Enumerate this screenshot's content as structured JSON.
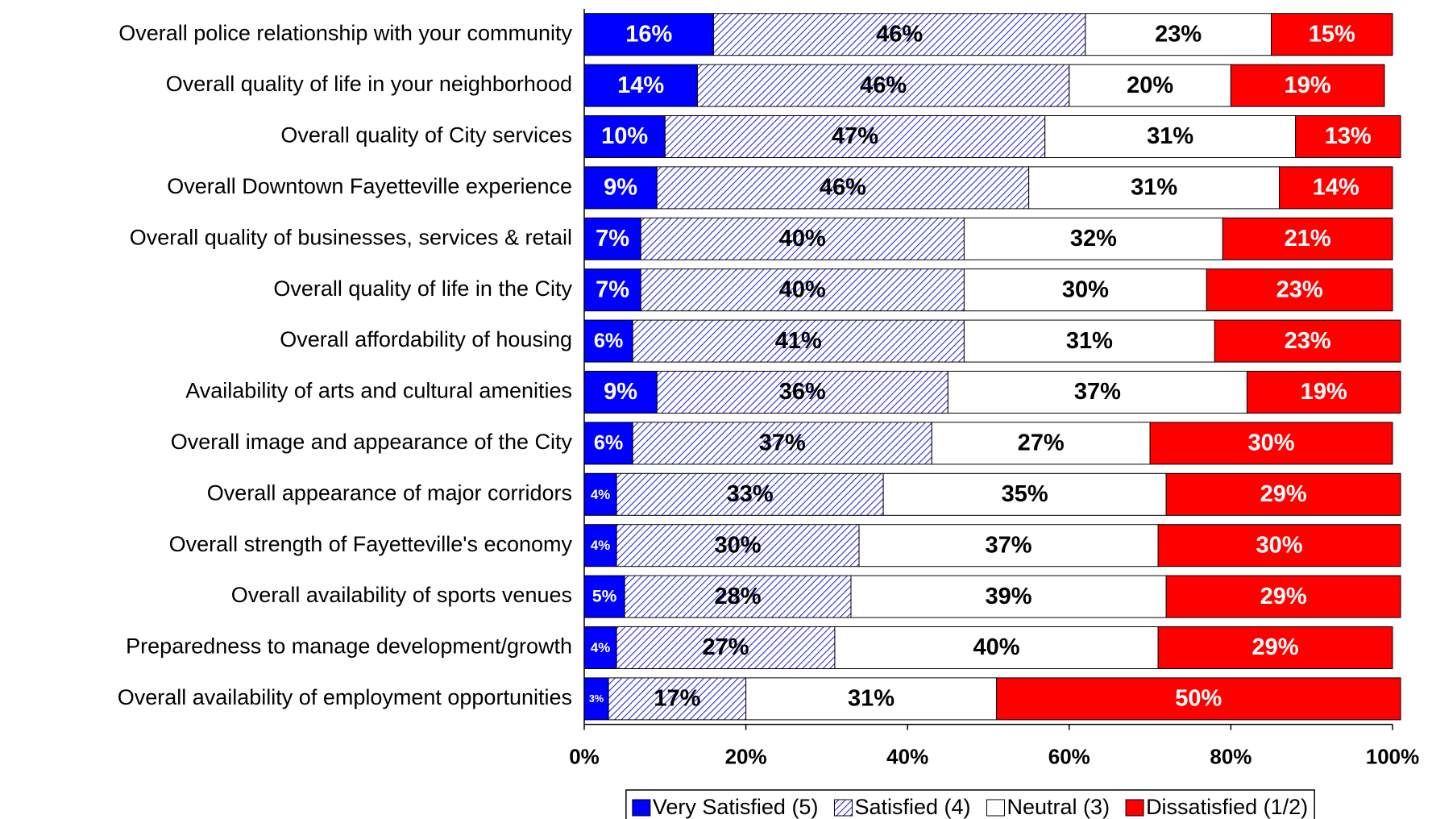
{
  "chart_data": {
    "type": "stacked_barh",
    "categories": [
      "Overall police relationship with your community",
      "Overall quality of life in your neighborhood",
      "Overall quality of City services",
      "Overall Downtown Fayetteville experience",
      "Overall quality of businesses, services & retail",
      "Overall quality of life in the City",
      "Overall affordability of housing",
      "Availability of arts and cultural amenities",
      "Overall image and appearance of the City",
      "Overall appearance of major corridors",
      "Overall strength of Fayetteville's economy",
      "Overall availability of sports venues",
      "Preparedness to manage development/growth",
      "Overall availability of employment opportunities"
    ],
    "series": [
      {
        "name": "Very Satisfied (5)",
        "color": "#0000ff",
        "label_color": "#ffffff",
        "values": [
          16,
          14,
          10,
          9,
          7,
          7,
          6,
          9,
          6,
          4,
          4,
          5,
          4,
          3
        ],
        "value_labels": [
          "16%",
          "14%",
          "10%",
          "9%",
          "7%",
          "7%",
          "6%",
          "9%",
          "6%",
          "4%",
          "4%",
          "5%",
          "4%",
          "3%"
        ]
      },
      {
        "name": "Satisfied (4)",
        "color": "#2a2ad8",
        "pattern": "hatch",
        "label_color": "#000000",
        "values": [
          46,
          46,
          47,
          46,
          40,
          40,
          41,
          36,
          37,
          33,
          30,
          28,
          27,
          17
        ],
        "value_labels": [
          "46%",
          "46%",
          "47%",
          "46%",
          "40%",
          "40%",
          "41%",
          "36%",
          "37%",
          "33%",
          "30%",
          "28%",
          "27%",
          "17%"
        ]
      },
      {
        "name": "Neutral (3)",
        "color": "#ffffff",
        "label_color": "#000000",
        "values": [
          23,
          20,
          31,
          31,
          32,
          30,
          31,
          37,
          27,
          35,
          37,
          39,
          40,
          31
        ],
        "value_labels": [
          "23%",
          "20%",
          "31%",
          "31%",
          "32%",
          "30%",
          "31%",
          "37%",
          "27%",
          "35%",
          "37%",
          "39%",
          "40%",
          "31%"
        ]
      },
      {
        "name": "Dissatisfied (1/2)",
        "color": "#ff0000",
        "label_color": "#ffffff",
        "values": [
          15,
          19,
          13,
          14,
          21,
          23,
          23,
          19,
          30,
          29,
          30,
          29,
          29,
          50
        ],
        "value_labels": [
          "15%",
          "19%",
          "13%",
          "14%",
          "21%",
          "23%",
          "23%",
          "19%",
          "30%",
          "29%",
          "30%",
          "29%",
          "29%",
          "50%"
        ]
      }
    ],
    "xlim": [
      0,
      100
    ],
    "xticks": [
      {
        "value": 0,
        "label": "0%"
      },
      {
        "value": 20,
        "label": "20%"
      },
      {
        "value": 40,
        "label": "40%"
      },
      {
        "value": 60,
        "label": "60%"
      },
      {
        "value": 80,
        "label": "80%"
      },
      {
        "value": 100,
        "label": "100%"
      }
    ],
    "legend": "bottom"
  }
}
